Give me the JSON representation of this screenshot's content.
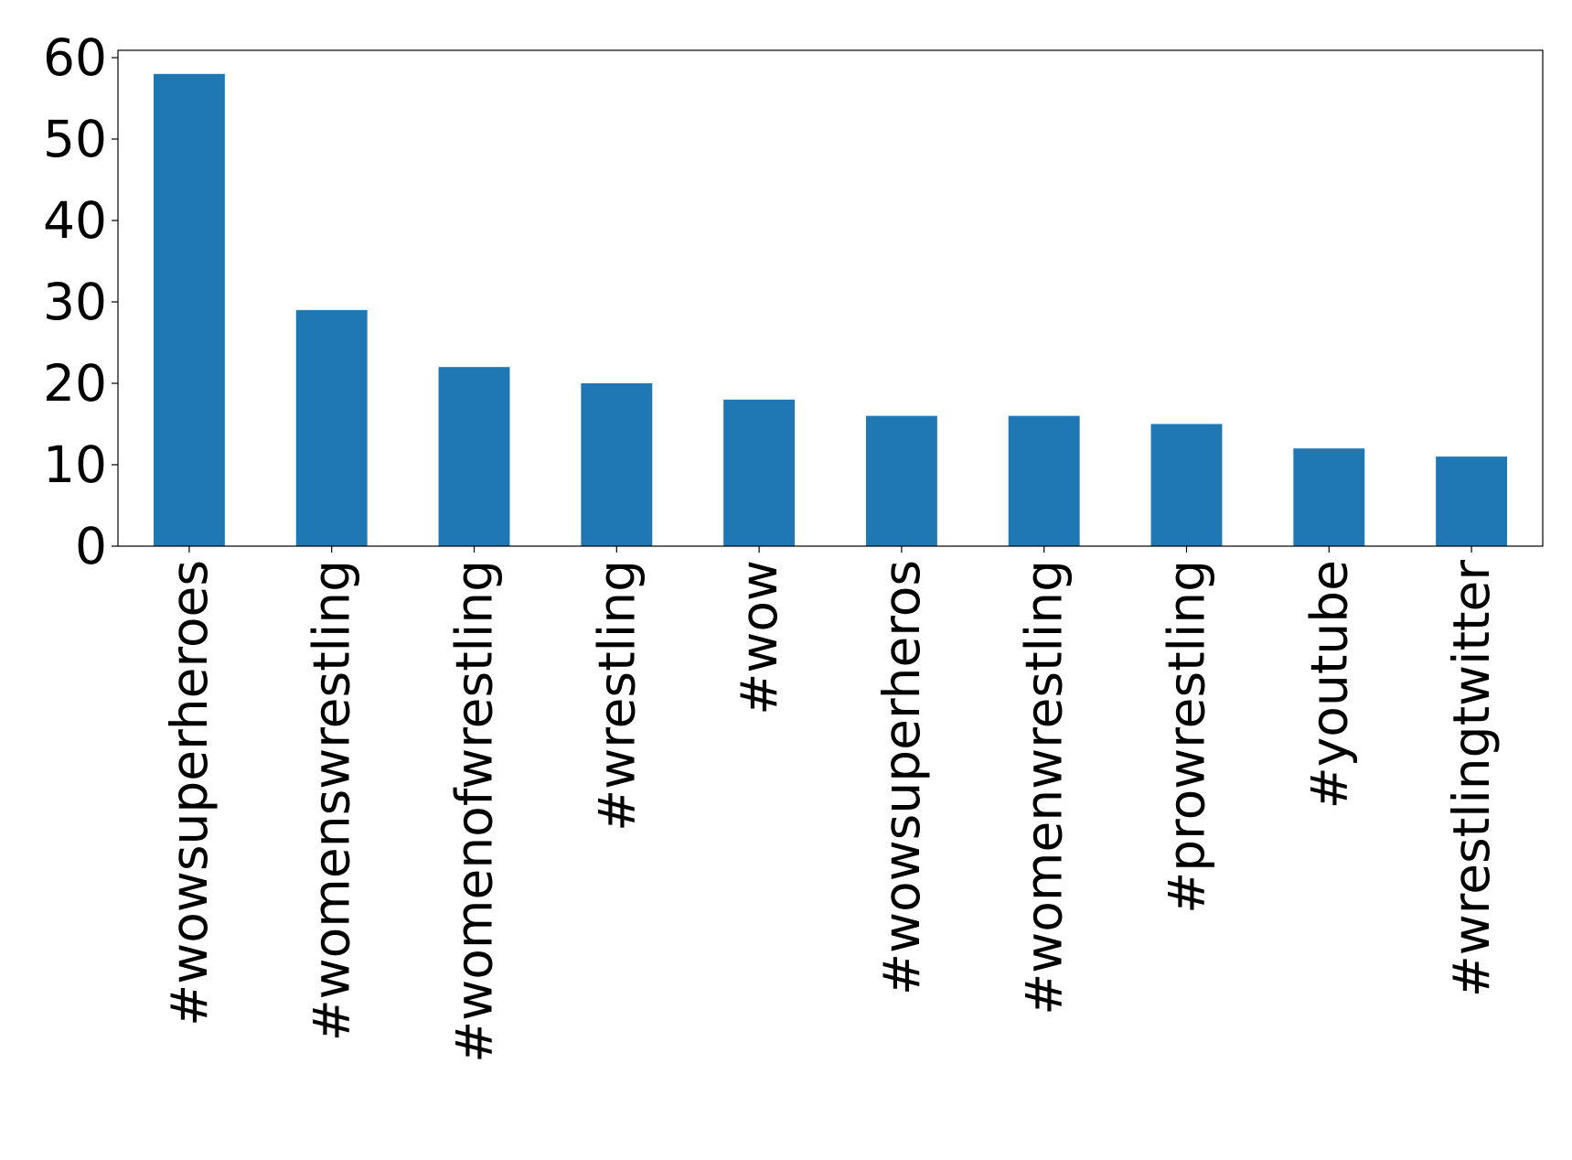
{
  "chart_data": {
    "type": "bar",
    "categories": [
      "#wowsuperheroes",
      "#womenswrestling",
      "#womenofwrestling",
      "#wrestling",
      "#wow",
      "#wowsuperheros",
      "#womenwrestling",
      "#prowrestling",
      "#youtube",
      "#wrestlingtwitter"
    ],
    "values": [
      58,
      29,
      22,
      20,
      18,
      16,
      16,
      15,
      12,
      11
    ],
    "color": "#1f77b4",
    "ylim": [
      0,
      60.9
    ],
    "yticks": [
      0,
      10,
      20,
      30,
      40,
      50,
      60
    ],
    "grid": false
  }
}
